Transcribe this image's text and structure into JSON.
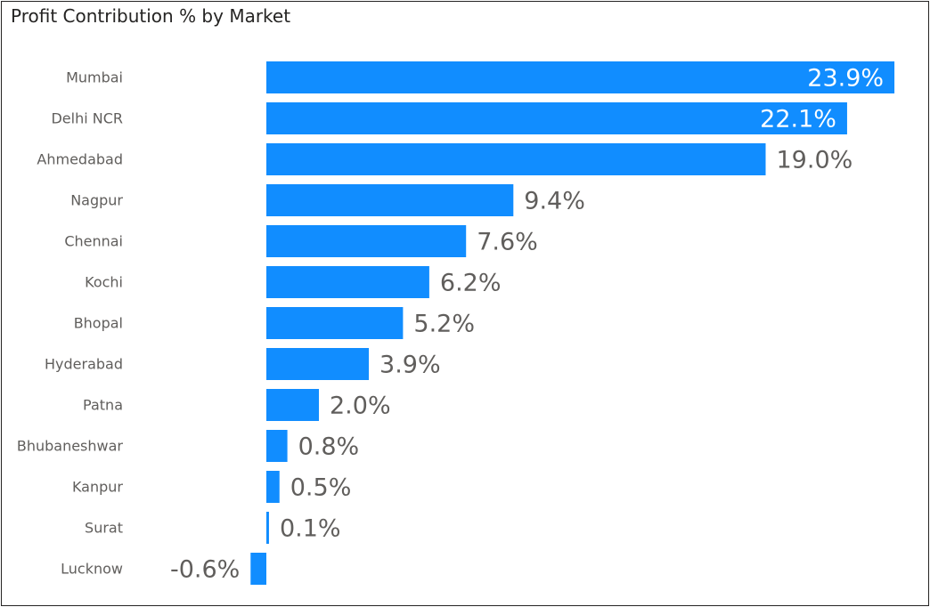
{
  "chart_data": {
    "type": "bar",
    "orientation": "horizontal",
    "title": "Profit Contribution % by Market",
    "categories": [
      "Mumbai",
      "Delhi NCR",
      "Ahmedabad",
      "Nagpur",
      "Chennai",
      "Kochi",
      "Bhopal",
      "Hyderabad",
      "Patna",
      "Bhubaneshwar",
      "Kanpur",
      "Surat",
      "Lucknow"
    ],
    "values": [
      23.9,
      22.1,
      19.0,
      9.4,
      7.6,
      6.2,
      5.2,
      3.9,
      2.0,
      0.8,
      0.5,
      0.1,
      -0.6
    ],
    "data_labels": [
      "23.9%",
      "22.1%",
      "19.0%",
      "9.4%",
      "7.6%",
      "6.2%",
      "5.2%",
      "3.9%",
      "2.0%",
      "0.8%",
      "0.5%",
      "0.1%",
      "-0.6%"
    ],
    "xlabel": "",
    "ylabel": "",
    "grid": false,
    "legend": "none",
    "bar_color": "#118dff",
    "label_color_inside": "#ffffff",
    "label_color_outside": "#605e5c"
  }
}
